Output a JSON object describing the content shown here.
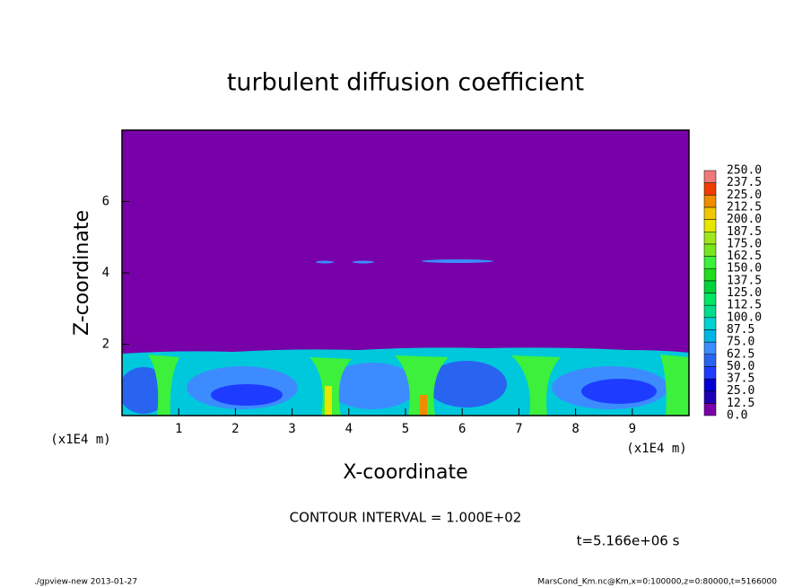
{
  "chart_data": {
    "type": "contour",
    "title": "turbulent diffusion coefficient",
    "xlabel": "X-coordinate",
    "ylabel": "Z-coordinate",
    "xunit": "(x1E4 m)",
    "xlim": [
      0,
      10
    ],
    "xticks": [
      1,
      2,
      3,
      4,
      5,
      6,
      7,
      8,
      9
    ],
    "ylim": [
      0,
      8
    ],
    "yticks": [
      2,
      4,
      6
    ],
    "annotations": [
      "CONTOUR INTERVAL = 1.000E+02",
      "t=5.166e+06 s"
    ],
    "footer_left": "./gpview-new  2013-01-27",
    "footer_right": "MarsCond_Km.nc@Km,x=0:100000,z=0:80000,t=5166000",
    "colorbar": {
      "levels": [
        {
          "value": 0,
          "label": "0.0"
        },
        {
          "value": 12.5,
          "label": "12.5"
        },
        {
          "value": 25,
          "label": "25.0"
        },
        {
          "value": 37.5,
          "label": "37.5"
        },
        {
          "value": 50,
          "label": "50.0"
        },
        {
          "value": 62.5,
          "label": "62.5"
        },
        {
          "value": 75,
          "label": "75.0"
        },
        {
          "value": 87.5,
          "label": "87.5"
        },
        {
          "value": 100,
          "label": "100.0"
        },
        {
          "value": 112.5,
          "label": "112.5"
        },
        {
          "value": 125,
          "label": "125.0"
        },
        {
          "value": 137.5,
          "label": "137.5"
        },
        {
          "value": 150,
          "label": "150.0"
        },
        {
          "value": 162.5,
          "label": "162.5"
        },
        {
          "value": 175,
          "label": "175.0"
        },
        {
          "value": 187.5,
          "label": "187.5"
        },
        {
          "value": 200,
          "label": "200.0"
        },
        {
          "value": 212.5,
          "label": "212.5"
        },
        {
          "value": 225,
          "label": "225.0"
        },
        {
          "value": 237.5,
          "label": "237.5"
        },
        {
          "value": 250,
          "label": "250.0"
        }
      ],
      "colors": [
        "#7800a8",
        "#1e00b4",
        "#0000d2",
        "#1e3cff",
        "#2864f0",
        "#3c8cff",
        "#00b4e6",
        "#00d2d2",
        "#00dc8c",
        "#00e664",
        "#00d23c",
        "#1edc1e",
        "#3cf03c",
        "#78e61e",
        "#a0e61e",
        "#e6e600",
        "#f0c800",
        "#f08c00",
        "#f03c00",
        "#f07878"
      ]
    }
  }
}
